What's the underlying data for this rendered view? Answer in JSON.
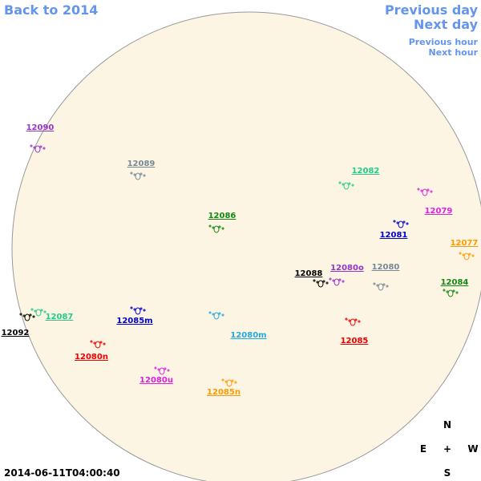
{
  "nav": {
    "back": "Back to 2014",
    "previous_day": "Previous day",
    "next_day": "Next day",
    "previous_hour": "Previous hour",
    "next_hour": "Next hour"
  },
  "regions": [
    {
      "label": "12090",
      "color": "#9933cc"
    },
    {
      "label": "12089",
      "color": "#778899"
    },
    {
      "label": "12082",
      "color": "#22cc88"
    },
    {
      "label": "12079",
      "color": "#dd22dd"
    },
    {
      "label": "12086",
      "color": "#118811"
    },
    {
      "label": "12081",
      "color": "#0000cc"
    },
    {
      "label": "12077",
      "color": "#ff9900"
    },
    {
      "label": "12088",
      "color": "#000000"
    },
    {
      "label": "12080o",
      "color": "#9933cc"
    },
    {
      "label": "12080",
      "color": "#778899"
    },
    {
      "label": "12084",
      "color": "#118811"
    },
    {
      "label": "12087",
      "color": "#22cc88"
    },
    {
      "label": "12092",
      "color": "#000000"
    },
    {
      "label": "12085m",
      "color": "#0000cc"
    },
    {
      "label": "12080m",
      "color": "#22aadd"
    },
    {
      "label": "12085",
      "color": "#ee0000"
    },
    {
      "label": "12080n",
      "color": "#ee0000"
    },
    {
      "label": "12080u",
      "color": "#dd22dd"
    },
    {
      "label": "12085n",
      "color": "#ff9900"
    }
  ],
  "compass": {
    "north": "N",
    "east": "E",
    "center": "+",
    "west": "W",
    "south": "S"
  },
  "timestamp": "2014-06-11T04:00:40"
}
